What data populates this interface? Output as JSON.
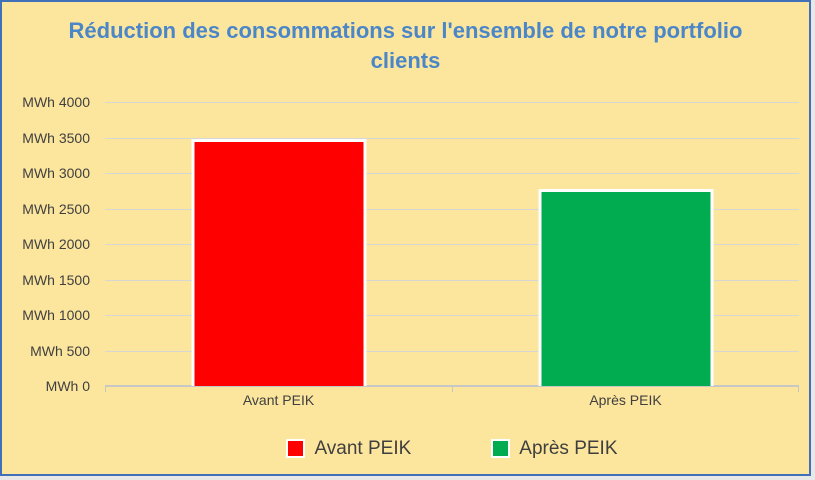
{
  "window": {
    "background": "#FCE59D",
    "frame_border_color": "#4170B8",
    "page_background": "#E8E8E8"
  },
  "chart_data": {
    "type": "bar",
    "title": "Réduction des consommations sur l'ensemble de notre portfolio clients",
    "title_color": "#4A86C8",
    "categories": [
      "Avant PEIK",
      "Après PEIK"
    ],
    "values": [
      3440,
      2730
    ],
    "bar_colors": [
      "#FE0000",
      "#00AC4F"
    ],
    "unit": "MWh",
    "y_ticks": [
      "MWh 4000",
      "MWh 3500",
      "MWh 3000",
      "MWh 2500",
      "MWh 2000",
      "MWh 1500",
      "MWh 1000",
      "MWh 500",
      "MWh 0"
    ],
    "ylim": [
      0,
      4000
    ],
    "grid": true,
    "gridline_color": "#D6D6D6",
    "axis_line_color": "#C7C7C7",
    "axis_text_color": "#404040",
    "legend": {
      "position": "bottom",
      "entries": [
        {
          "label": "Avant PEIK",
          "color": "#FE0000"
        },
        {
          "label": "Après PEIK",
          "color": "#00AC4F"
        }
      ]
    }
  }
}
